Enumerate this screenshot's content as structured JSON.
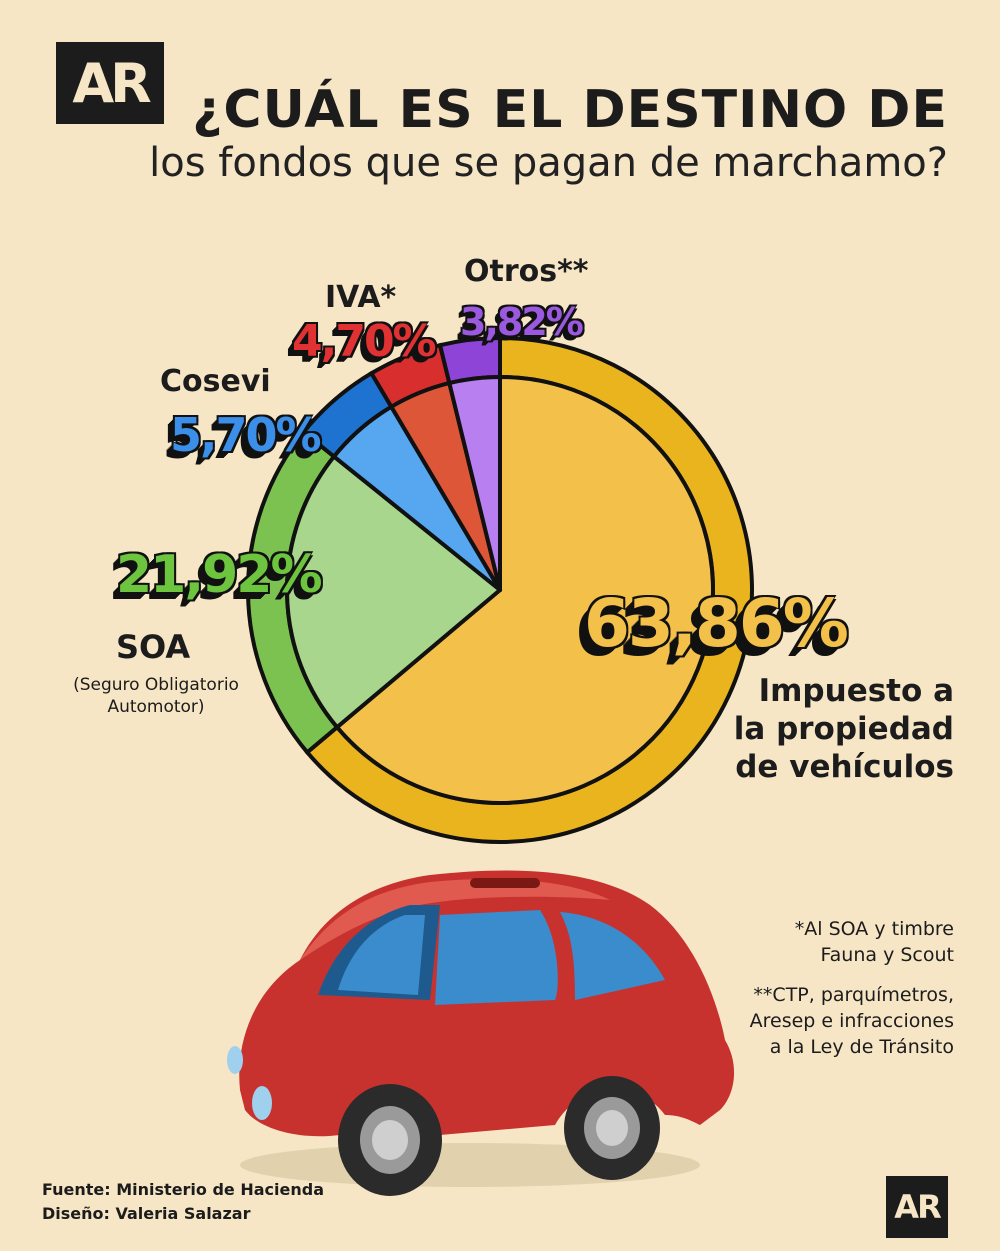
{
  "logo": "AR",
  "title": {
    "line1": "¿CUÁL ES EL DESTINO DE",
    "line2": "los fondos que se pagan de marchamo?"
  },
  "chart_data": {
    "type": "pie",
    "title": "¿CUÁL ES EL DESTINO DE los fondos que se pagan de marchamo?",
    "series": [
      {
        "name": "Impuesto a la propiedad de vehículos",
        "value": 63.86,
        "label": "63,86%",
        "color": "#f3c04a",
        "ring_color": "#e9b41e",
        "text_color": "#f3c04a"
      },
      {
        "name": "SOA",
        "value": 21.92,
        "label": "21,92%",
        "color": "#a7d68c",
        "ring_color": "#7cc250",
        "text_color": "#6cc43f"
      },
      {
        "name": "Cosevi",
        "value": 5.7,
        "label": "5,70%",
        "color": "#56a6f0",
        "ring_color": "#1e72d0",
        "text_color": "#3b8fe8"
      },
      {
        "name": "IVA*",
        "value": 4.7,
        "label": "4,70%",
        "color": "#de5638",
        "ring_color": "#d92e2e",
        "text_color": "#e03232"
      },
      {
        "name": "Otros**",
        "value": 3.82,
        "label": "3,82%",
        "color": "#b87ff0",
        "ring_color": "#8e44d6",
        "text_color": "#9b59e0"
      }
    ]
  },
  "labels": {
    "impuesto": [
      "Impuesto a",
      "la propiedad",
      "de vehículos"
    ],
    "soa": "SOA",
    "soa_sub": [
      "(Seguro Obligatorio",
      "Automotor)"
    ],
    "cosevi": "Cosevi",
    "iva": "IVA*",
    "otros": "Otros**"
  },
  "notes": {
    "note1": [
      "*Al SOA y timbre",
      "Fauna y Scout"
    ],
    "note2": [
      "**CTP, parquímetros,",
      "Aresep e infracciones",
      "a la Ley de Tránsito"
    ]
  },
  "credits": {
    "source": "Fuente: Ministerio de Hacienda",
    "design": "Diseño: Valeria Salazar"
  }
}
